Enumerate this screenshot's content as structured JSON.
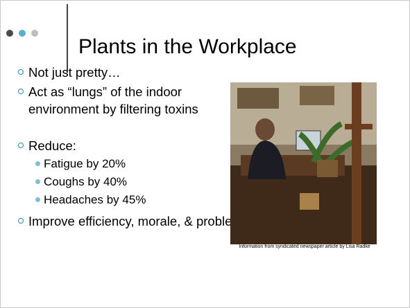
{
  "title": "Plants in the Workplace",
  "bullets": [
    {
      "text": "Not just pretty…"
    },
    {
      "text": "Act as “lungs” of the indoor environment by filtering toxins"
    },
    {
      "text": "Reduce:",
      "sub": [
        "Fatigue by 20%",
        "Coughs by 40%",
        "Headaches by 45%"
      ]
    },
    {
      "text": "Improve efficiency, morale, & problem-solving"
    }
  ],
  "photo_caption": "Information from syndicated newspaper article by Lisa Radke"
}
